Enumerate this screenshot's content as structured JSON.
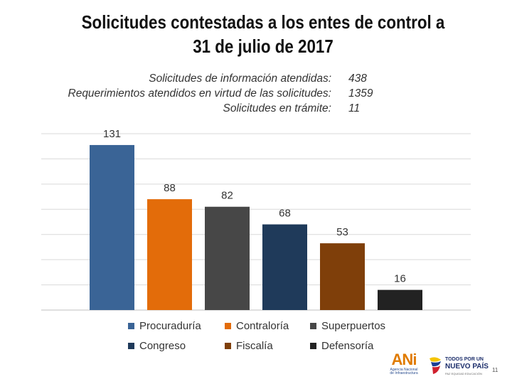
{
  "title": "Solicitudes contestadas a los entes de control a 31 de julio de 2017",
  "stats": [
    {
      "label": "Solicitudes de información atendidas:",
      "value": "438"
    },
    {
      "label": "Requerimientos atendidos en virtud de las solicitudes:",
      "value": "1359"
    },
    {
      "label": "Solicitudes en trámite:",
      "value": "11"
    }
  ],
  "chart_data": {
    "type": "bar",
    "title": "",
    "xlabel": "",
    "ylabel": "",
    "grid": true,
    "legend_position": "bottom",
    "ylim": [
      0,
      140
    ],
    "categories": [
      "Procuraduría",
      "Contraloría",
      "Superpuertos",
      "Congreso",
      "Fiscalía",
      "Defensoría"
    ],
    "values": [
      131,
      88,
      82,
      68,
      53,
      16
    ],
    "colors": [
      "#3a6496",
      "#e36c0a",
      "#474747",
      "#1f3a5a",
      "#7f3f0a",
      "#222222"
    ]
  },
  "footer": {
    "ani_logo_text": "ANi",
    "ani_logo_sub": "Agencia Nacional de Infraestructura",
    "tpnp_line1": "TODOS POR UN",
    "tpnp_line2": "NUEVO PAÍS",
    "tpnp_line3": "PAZ  EQUIDAD  EDUCACIÓN",
    "page_number": "11"
  }
}
